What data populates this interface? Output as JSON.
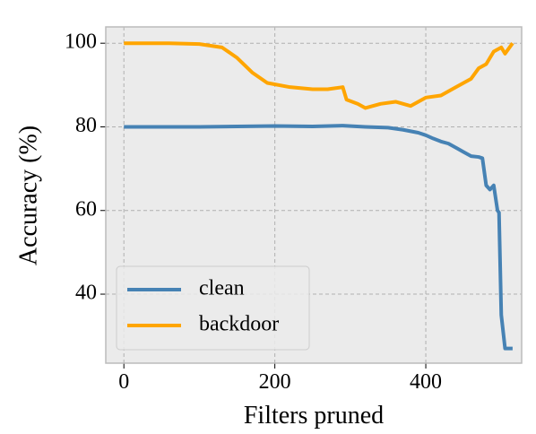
{
  "chart_data": {
    "type": "line",
    "x_label": "Filters pruned",
    "y_label": "Accuracy (%)",
    "xlim": [
      -24,
      527
    ],
    "ylim": [
      23.5,
      103.9
    ],
    "xticks": [
      0,
      200,
      400
    ],
    "yticks": [
      40,
      60,
      80,
      100
    ],
    "grid": true,
    "legend": "lower left",
    "series": [
      {
        "name": "clean",
        "color": "#4682b4",
        "x": [
          0,
          100,
          200,
          250,
          290,
          320,
          350,
          370,
          390,
          400,
          410,
          420,
          430,
          440,
          450,
          460,
          470,
          475,
          480,
          485,
          490,
          495,
          497,
          500,
          505,
          515
        ],
        "values": [
          80,
          80,
          80.2,
          80.1,
          80.3,
          80,
          79.8,
          79.3,
          78.6,
          78,
          77.2,
          76.5,
          76,
          75,
          74,
          73,
          72.8,
          72.5,
          66,
          65,
          66,
          60,
          59.5,
          35,
          27,
          27
        ]
      },
      {
        "name": "backdoor",
        "color": "#ffa500",
        "x": [
          0,
          60,
          100,
          130,
          150,
          170,
          190,
          220,
          250,
          270,
          290,
          295,
          310,
          320,
          340,
          360,
          380,
          400,
          420,
          440,
          460,
          470,
          480,
          490,
          500,
          505,
          515
        ],
        "values": [
          100,
          100,
          99.8,
          99,
          96.5,
          93,
          90.5,
          89.5,
          89,
          89,
          89.5,
          86.5,
          85.5,
          84.5,
          85.5,
          86,
          85,
          87,
          87.5,
          89.5,
          91.5,
          94,
          95,
          98,
          99,
          97.5,
          100
        ]
      }
    ]
  }
}
